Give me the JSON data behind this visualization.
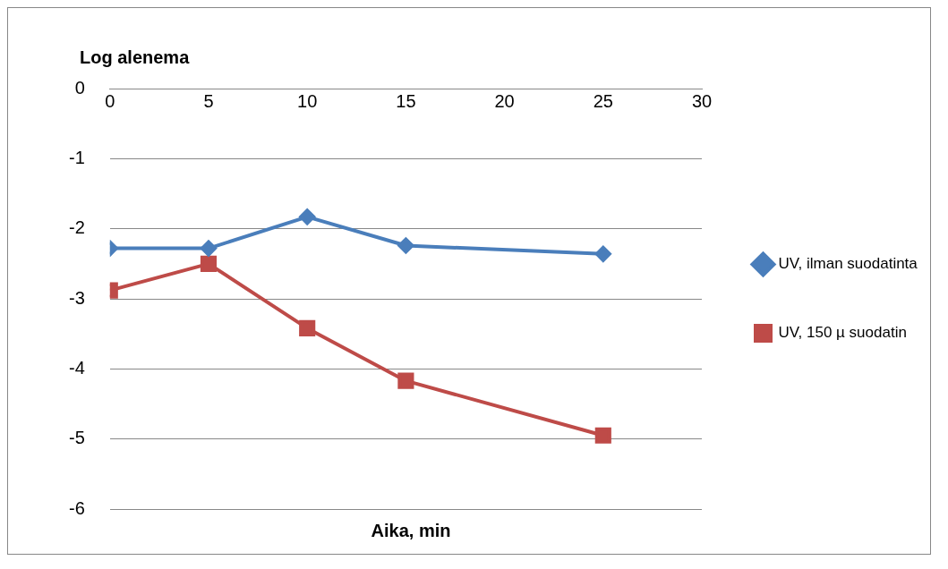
{
  "chart_data": {
    "type": "line",
    "ylabel": "Log alenema",
    "xlabel": "Aika, min",
    "x": [
      0,
      5,
      10,
      15,
      25
    ],
    "series": [
      {
        "name": "UV, ilman suodatinta",
        "color": "#4a7ebb",
        "values": [
          -2.28,
          -2.28,
          -1.83,
          -2.24,
          -2.36
        ],
        "marker": "diamond"
      },
      {
        "name": "UV, 150 µ suodatin",
        "color": "#be4b48",
        "values": [
          -2.88,
          -2.5,
          -3.42,
          -4.17,
          -4.95
        ],
        "marker": "square"
      }
    ],
    "xlim": [
      0,
      30
    ],
    "xticks": [
      0,
      5,
      10,
      15,
      20,
      25,
      30
    ],
    "ylim": [
      -6,
      0
    ],
    "yticks": [
      0,
      -1,
      -2,
      -3,
      -4,
      -5,
      -6
    ],
    "grid": "y",
    "legend": "right",
    "line_style": "solid"
  }
}
